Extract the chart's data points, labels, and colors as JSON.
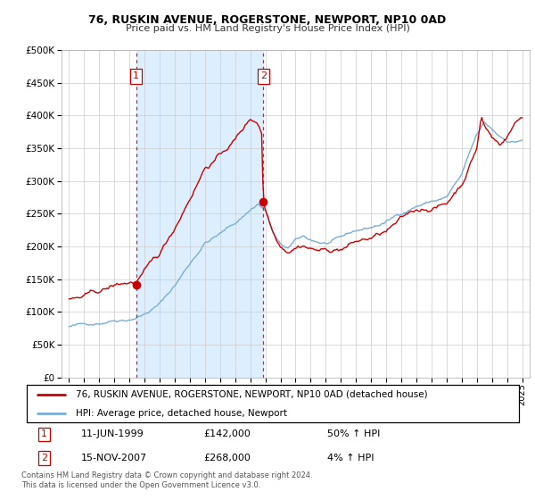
{
  "title": "76, RUSKIN AVENUE, ROGERSTONE, NEWPORT, NP10 0AD",
  "subtitle": "Price paid vs. HM Land Registry's House Price Index (HPI)",
  "legend_line1": "76, RUSKIN AVENUE, ROGERSTONE, NEWPORT, NP10 0AD (detached house)",
  "legend_line2": "HPI: Average price, detached house, Newport",
  "footer": "Contains HM Land Registry data © Crown copyright and database right 2024.\nThis data is licensed under the Open Government Licence v3.0.",
  "purchase1_date": "11-JUN-1999",
  "purchase1_price": 142000,
  "purchase1_hpi": "50% ↑ HPI",
  "purchase1_x": 1999.44,
  "purchase2_date": "15-NOV-2007",
  "purchase2_price": 268000,
  "purchase2_hpi": "4% ↑ HPI",
  "purchase2_x": 2007.87,
  "ylim": [
    0,
    500000
  ],
  "xlim_start": 1994.5,
  "xlim_end": 2025.5,
  "hpi_color": "#7aaed6",
  "price_color": "#cc0000",
  "vline_color": "#cc0000",
  "shade_color": "#ddeeff",
  "background_color": "#ffffff",
  "grid_color": "#cccccc"
}
